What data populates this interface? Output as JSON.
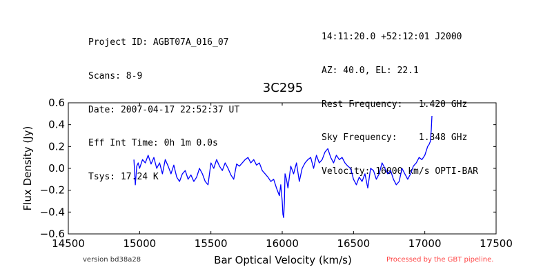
{
  "header_left": [
    "Project ID: AGBT07A_016_07",
    "Scans: 8-9",
    "Date: 2007-04-17 22:52:37 UT",
    "Eff Int Time: 0h 1m 0.0s",
    "Tsys: 17.24 K"
  ],
  "header_right": [
    "14:11:20.0 +52:12:01 J2000",
    "AZ: 40.0, EL: 22.1",
    "Rest Frequency:   1.420 GHz",
    "Sky Frequency:    1.348 GHz",
    "Velocity: 16000 km/s OPTI-BAR"
  ],
  "footer": {
    "version": "version bd38a28",
    "processed": "Processed by the GBT pipeline.",
    "processed_color": "#ff4444"
  },
  "chart_data": {
    "type": "line",
    "title": "3C295",
    "xlabel": "Bar Optical Velocity (km/s)",
    "ylabel": "Flux Density (Jy)",
    "xlim": [
      14500,
      17500
    ],
    "ylim": [
      -0.6,
      0.6
    ],
    "xticks": [
      14500,
      15000,
      15500,
      16000,
      16500,
      17000,
      17500
    ],
    "yticks": [
      -0.6,
      -0.4,
      -0.2,
      0.0,
      0.2,
      0.4,
      0.6
    ],
    "xtick_labels": [
      "14500",
      "15000",
      "15500",
      "16000",
      "16500",
      "17000",
      "17500"
    ],
    "ytick_labels": [
      "−0.6",
      "−0.4",
      "−0.2",
      "0.0",
      "0.2",
      "0.4",
      "0.6"
    ],
    "grid": false,
    "line_color": "#0000ff",
    "series": [
      {
        "x": [
          14960,
          14970,
          14980,
          14990,
          15000,
          15020,
          15040,
          15060,
          15080,
          15100,
          15120,
          15140,
          15160,
          15180,
          15200,
          15220,
          15240,
          15260,
          15280,
          15300,
          15320,
          15340,
          15360,
          15380,
          15400,
          15420,
          15440,
          15460,
          15480,
          15500,
          15520,
          15540,
          15560,
          15580,
          15600,
          15620,
          15640,
          15660,
          15680,
          15700,
          15720,
          15740,
          15760,
          15780,
          15800,
          15820,
          15840,
          15860,
          15880,
          15900,
          15920,
          15940,
          15960,
          15980,
          15990,
          16000,
          16005,
          16010,
          16015,
          16020,
          16030,
          16040,
          16060,
          16080,
          16100,
          16120,
          16140,
          16160,
          16180,
          16200,
          16220,
          16240,
          16260,
          16280,
          16300,
          16320,
          16340,
          16360,
          16380,
          16400,
          16420,
          16440,
          16460,
          16480,
          16500,
          16520,
          16540,
          16560,
          16580,
          16600,
          16620,
          16640,
          16660,
          16680,
          16700,
          16720,
          16740,
          16760,
          16780,
          16800,
          16820,
          16840,
          16860,
          16880,
          16900,
          16920,
          16940,
          16960,
          16980,
          17000,
          17020,
          17030,
          17040,
          17045,
          17050
        ],
        "y": [
          0.08,
          -0.15,
          0.02,
          0.05,
          0.0,
          0.08,
          0.05,
          0.12,
          0.04,
          0.1,
          0.0,
          0.05,
          -0.05,
          0.08,
          0.02,
          -0.05,
          0.03,
          -0.08,
          -0.12,
          -0.05,
          -0.02,
          -0.1,
          -0.06,
          -0.12,
          -0.08,
          0.0,
          -0.05,
          -0.12,
          -0.15,
          0.05,
          0.0,
          0.08,
          0.02,
          -0.02,
          0.05,
          0.0,
          -0.06,
          -0.1,
          0.04,
          0.02,
          0.05,
          0.08,
          0.1,
          0.05,
          0.08,
          0.03,
          0.05,
          -0.02,
          -0.05,
          -0.08,
          -0.12,
          -0.1,
          -0.18,
          -0.25,
          -0.15,
          -0.3,
          -0.42,
          -0.45,
          -0.32,
          -0.05,
          -0.1,
          -0.18,
          0.02,
          -0.05,
          0.05,
          -0.12,
          0.0,
          0.05,
          0.08,
          0.1,
          0.0,
          0.12,
          0.05,
          0.08,
          0.15,
          0.18,
          0.1,
          0.05,
          0.12,
          0.08,
          0.1,
          0.05,
          0.02,
          0.0,
          -0.1,
          -0.15,
          -0.08,
          -0.12,
          -0.05,
          -0.18,
          0.0,
          -0.02,
          -0.1,
          -0.05,
          0.05,
          0.0,
          -0.05,
          -0.02,
          -0.1,
          -0.15,
          -0.12,
          0.0,
          -0.05,
          -0.1,
          -0.05,
          0.02,
          0.05,
          0.1,
          0.08,
          0.12,
          0.2,
          0.22,
          0.25,
          0.35,
          0.48
        ]
      }
    ]
  }
}
